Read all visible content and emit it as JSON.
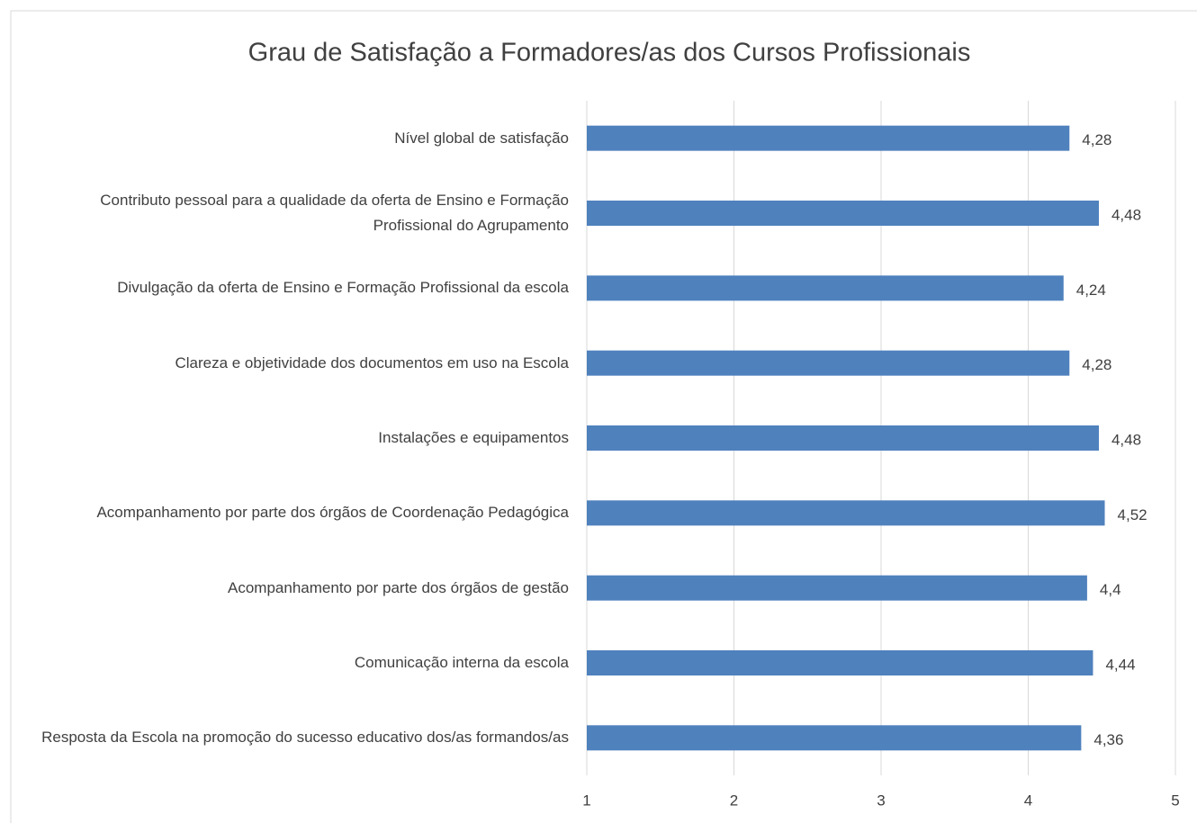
{
  "chart_data": {
    "type": "bar",
    "orientation": "horizontal",
    "title": "Grau de Satisfação a Formadores/as dos Cursos Profissionais",
    "categories": [
      "Nível global de satisfação",
      "Contributo pessoal para a qualidade da oferta de Ensino e Formação Profissional do Agrupamento",
      "Divulgação da oferta de Ensino e Formação Profissional da escola",
      "Clareza e objetividade dos documentos em uso na Escola",
      "Instalações e equipamentos",
      "Acompanhamento por parte dos órgãos de Coordenação Pedagógica",
      "Acompanhamento por parte dos órgãos de gestão",
      "Comunicação interna da escola",
      "Resposta da Escola na promoção do sucesso educativo dos/as formandos/as"
    ],
    "values": [
      4.28,
      4.48,
      4.24,
      4.28,
      4.48,
      4.52,
      4.4,
      4.44,
      4.36
    ],
    "value_labels": [
      "4,28",
      "4,48",
      "4,24",
      "4,28",
      "4,48",
      "4,52",
      "4,4",
      "4,44",
      "4,36"
    ],
    "color": "#4f81bd",
    "xlim": [
      1,
      5
    ],
    "xticks": [
      1,
      2,
      3,
      4,
      5
    ],
    "grid": true
  }
}
